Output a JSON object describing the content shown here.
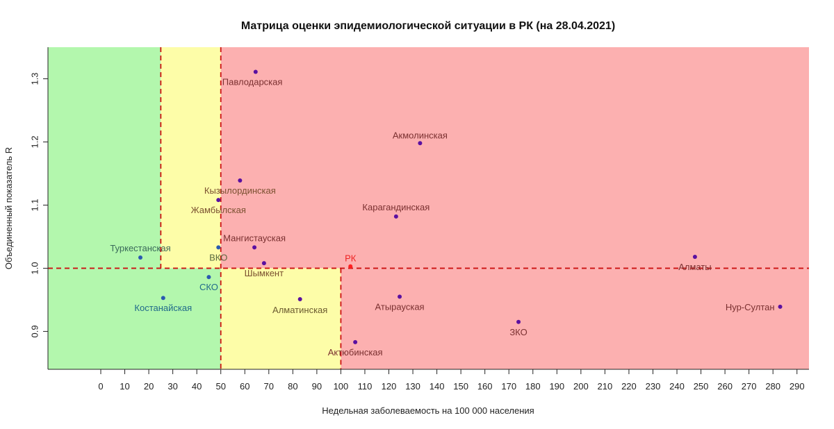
{
  "chart_data": {
    "type": "scatter",
    "title": "Матрица оценки эпидемиологической ситуации в РК (на 28.04.2021)",
    "xlabel": "Недельная заболеваемость на 100 000 населения",
    "ylabel": "Объединенный показатель R",
    "xlim": [
      -22,
      295
    ],
    "ylim": [
      0.84,
      1.35
    ],
    "x_ticks": [
      0,
      10,
      20,
      30,
      40,
      50,
      60,
      70,
      80,
      90,
      100,
      110,
      120,
      130,
      140,
      150,
      160,
      170,
      180,
      190,
      200,
      210,
      220,
      230,
      240,
      250,
      260,
      270,
      280,
      290
    ],
    "y_ticks": [
      0.9,
      1.0,
      1.1,
      1.2,
      1.3
    ],
    "grid": false,
    "zone_colors": {
      "green": "#b3f7ad",
      "yellow": "#fdfda8",
      "red": "#fcb0b0"
    },
    "zones": [
      {
        "color": "green",
        "x": [
          -22,
          25
        ],
        "y": [
          1.0,
          1.35
        ]
      },
      {
        "color": "yellow",
        "x": [
          25,
          50
        ],
        "y": [
          1.0,
          1.35
        ]
      },
      {
        "color": "red",
        "x": [
          50,
          295
        ],
        "y": [
          1.0,
          1.35
        ]
      },
      {
        "color": "green",
        "x": [
          -22,
          50
        ],
        "y": [
          0.84,
          1.0
        ]
      },
      {
        "color": "yellow",
        "x": [
          50,
          100
        ],
        "y": [
          0.84,
          1.0
        ]
      },
      {
        "color": "red",
        "x": [
          100,
          295
        ],
        "y": [
          0.84,
          1.0
        ]
      }
    ],
    "threshold_color": "#cc1111",
    "thresholds": [
      {
        "axis": "x",
        "value": 25,
        "from": 1.0,
        "to": 1.35
      },
      {
        "axis": "x",
        "value": 50,
        "from": 0.84,
        "to": 1.35
      },
      {
        "axis": "x",
        "value": 100,
        "from": 0.84,
        "to": 1.0
      },
      {
        "axis": "y",
        "value": 1.0,
        "from": -22,
        "to": 295
      }
    ],
    "points": [
      {
        "label": "Павлодарская",
        "x": 64.5,
        "y": 1.311,
        "color": "#5a10a0",
        "label_color": "#7a3030",
        "anchor": "start",
        "dx": -48,
        "dy": 19
      },
      {
        "label": "Акмолинская",
        "x": 133,
        "y": 1.198,
        "color": "#5a10a0",
        "label_color": "#7a3030",
        "anchor": "middle",
        "dx": 0,
        "dy": -7
      },
      {
        "label": "Кызылординская",
        "x": 58,
        "y": 1.139,
        "color": "#5a10a0",
        "label_color": "#7a5030",
        "anchor": "middle",
        "dx": 0,
        "dy": 19
      },
      {
        "label": "Жамбылская",
        "x": 49,
        "y": 1.108,
        "color": "#5a10a0",
        "label_color": "#7a5030",
        "anchor": "middle",
        "dx": 0,
        "dy": 19
      },
      {
        "label": "Карагандинская",
        "x": 123,
        "y": 1.082,
        "color": "#5a10a0",
        "label_color": "#7a3030",
        "anchor": "middle",
        "dx": 0,
        "dy": -9
      },
      {
        "label": "Мангистауская",
        "x": 64,
        "y": 1.033,
        "color": "#5a10a0",
        "label_color": "#7a3030",
        "anchor": "middle",
        "dx": 0,
        "dy": -9
      },
      {
        "label": "ВКО",
        "x": 49,
        "y": 1.033,
        "color": "#2a5ab0",
        "label_color": "#5a6a40",
        "anchor": "middle",
        "dx": 0,
        "dy": 19
      },
      {
        "label": "Шымкент",
        "x": 68,
        "y": 1.008,
        "color": "#5a10a0",
        "label_color": "#7a5030",
        "anchor": "middle",
        "dx": 0,
        "dy": 19
      },
      {
        "label": "Туркестанская",
        "x": 16.5,
        "y": 1.017,
        "color": "#2a5ab0",
        "label_color": "#3a6a5a",
        "anchor": "middle",
        "dx": 0,
        "dy": -9
      },
      {
        "label": "РК",
        "x": 104,
        "y": 1.003,
        "color": "#ff2020",
        "label_color": "#ee2222",
        "anchor": "middle",
        "dx": 0,
        "dy": -7
      },
      {
        "label": "Алматы",
        "x": 247.5,
        "y": 1.018,
        "color": "#5a10a0",
        "label_color": "#7a3030",
        "anchor": "middle",
        "dx": 0,
        "dy": 19
      },
      {
        "label": "СКО",
        "x": 45,
        "y": 0.986,
        "color": "#2a5ab0",
        "label_color": "#206a8a",
        "anchor": "middle",
        "dx": 0,
        "dy": 19
      },
      {
        "label": "Костанайская",
        "x": 26,
        "y": 0.953,
        "color": "#2a5ab0",
        "label_color": "#206a8a",
        "anchor": "middle",
        "dx": 0,
        "dy": 19
      },
      {
        "label": "Алматинская",
        "x": 83,
        "y": 0.951,
        "color": "#5a10a0",
        "label_color": "#6a5a30",
        "anchor": "middle",
        "dx": 0,
        "dy": 20
      },
      {
        "label": "Атырауская",
        "x": 124.5,
        "y": 0.955,
        "color": "#5a10a0",
        "label_color": "#7a3030",
        "anchor": "middle",
        "dx": 0,
        "dy": 19
      },
      {
        "label": "Нур-Султан",
        "x": 283,
        "y": 0.939,
        "color": "#5a10a0",
        "label_color": "#7a3030",
        "anchor": "end",
        "dx": -8,
        "dy": 5
      },
      {
        "label": "ЗКО",
        "x": 174,
        "y": 0.915,
        "color": "#5a10a0",
        "label_color": "#7a3030",
        "anchor": "middle",
        "dx": 0,
        "dy": 19
      },
      {
        "label": "Актюбинская",
        "x": 106,
        "y": 0.883,
        "color": "#5a10a0",
        "label_color": "#7a3030",
        "anchor": "middle",
        "dx": 0,
        "dy": 19
      }
    ]
  }
}
